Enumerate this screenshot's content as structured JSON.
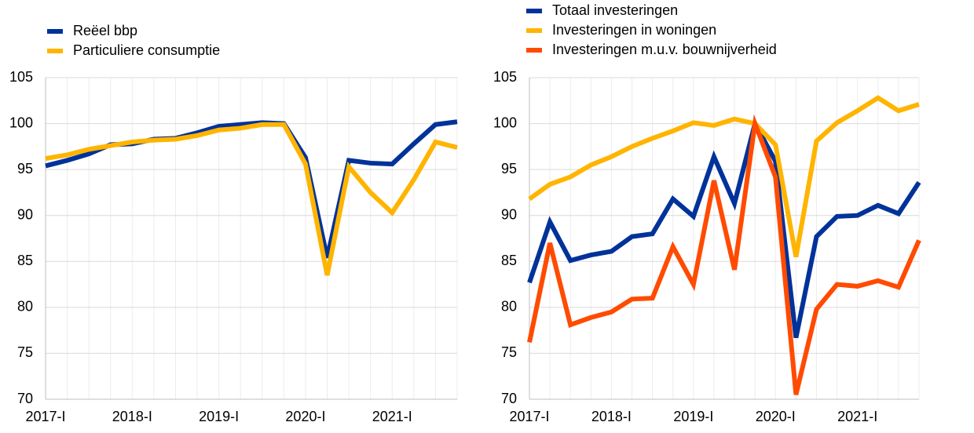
{
  "chart_data": [
    {
      "type": "line",
      "categories": [
        "2017-I",
        null,
        null,
        null,
        "2018-I",
        null,
        null,
        null,
        "2019-I",
        null,
        null,
        null,
        "2020-I",
        null,
        null,
        null,
        "2021-I",
        null,
        null,
        null
      ],
      "series": [
        {
          "name": "Reëel bbp",
          "color": "#003299",
          "values": [
            95.4,
            96.0,
            96.7,
            97.7,
            97.8,
            98.3,
            98.4,
            99.0,
            99.7,
            99.9,
            100.1,
            100.0,
            96.3,
            85.4,
            96.0,
            95.7,
            95.6,
            97.8,
            99.9,
            100.2
          ]
        },
        {
          "name": "Particuliere consumptie",
          "color": "#ffb400",
          "values": [
            96.2,
            96.6,
            97.2,
            97.6,
            98.0,
            98.2,
            98.3,
            98.7,
            99.3,
            99.5,
            99.9,
            99.9,
            95.6,
            83.5,
            95.3,
            92.5,
            90.3,
            93.9,
            98.0,
            97.4
          ]
        }
      ],
      "ylim": [
        70,
        105
      ],
      "yticks": [
        70,
        75,
        80,
        85,
        90,
        95,
        100,
        105
      ],
      "grid": true,
      "legend": "top-left"
    },
    {
      "type": "line",
      "categories": [
        "2017-I",
        null,
        null,
        null,
        "2018-I",
        null,
        null,
        null,
        "2019-I",
        null,
        null,
        null,
        "2020-I",
        null,
        null,
        null,
        "2021-I",
        null,
        null,
        null
      ],
      "series": [
        {
          "name": "Totaal investeringen",
          "color": "#003299",
          "values": [
            82.7,
            89.3,
            85.1,
            85.7,
            86.1,
            87.7,
            88.0,
            91.8,
            89.9,
            96.4,
            91.3,
            100.0,
            95.9,
            76.7,
            87.7,
            89.9,
            90.0,
            91.1,
            90.2,
            93.6
          ]
        },
        {
          "name": "Investeringen in woningen",
          "color": "#ffb400",
          "values": [
            91.8,
            93.4,
            94.2,
            95.5,
            96.4,
            97.5,
            98.4,
            99.2,
            100.1,
            99.8,
            100.5,
            100.0,
            97.7,
            85.5,
            98.1,
            100.1,
            101.4,
            102.8,
            101.4,
            102.1
          ]
        },
        {
          "name": "Investeringen m.u.v. bouwnijverheid",
          "color": "#ff4b00",
          "values": [
            76.2,
            87.0,
            78.1,
            78.9,
            79.5,
            80.9,
            81.0,
            86.6,
            82.5,
            93.8,
            84.1,
            100.0,
            94.2,
            70.5,
            79.8,
            82.5,
            82.3,
            82.9,
            82.2,
            87.3
          ]
        }
      ],
      "ylim": [
        70,
        105
      ],
      "yticks": [
        70,
        75,
        80,
        85,
        90,
        95,
        100,
        105
      ],
      "grid": true,
      "legend": "top-left"
    }
  ]
}
